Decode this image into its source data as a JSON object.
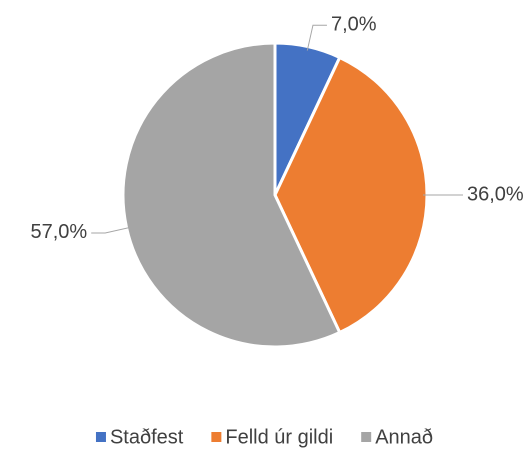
{
  "chart_data": {
    "type": "pie",
    "categories": [
      "Staðfest",
      "Felld úr gildi",
      "Annað"
    ],
    "values": [
      7,
      36,
      57
    ],
    "value_labels": [
      "7,0%",
      "36,0%",
      "57,0%"
    ],
    "colors": [
      "#4472c4",
      "#ed7d31",
      "#a5a5a5"
    ],
    "legend": "bottom"
  }
}
